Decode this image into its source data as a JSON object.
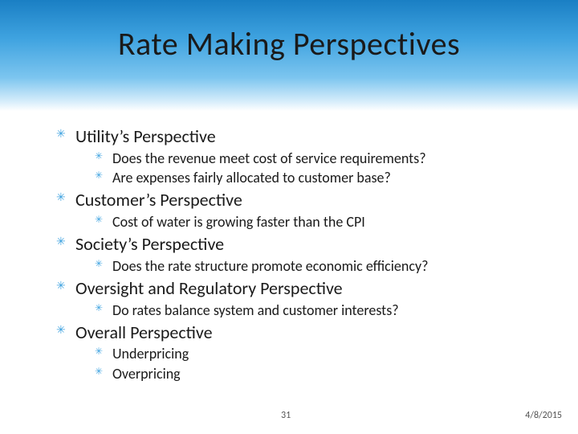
{
  "colors": {
    "gradient_top": "#1a7fc4",
    "gradient_mid": "#7cc5ef",
    "gradient_bottom": "#ffffff",
    "bullet": "#3fa3e0",
    "text": "#1a1a1a"
  },
  "typography": {
    "title_fontsize": 40,
    "section_fontsize": 22,
    "sub_fontsize": 18,
    "footer_fontsize": 12,
    "font_family": "Segoe UI / Candara"
  },
  "title": "Rate Making Perspectives",
  "sections": [
    {
      "heading": "Utility’s Perspective",
      "items": [
        "Does the revenue meet cost of service requirements?",
        "Are expenses fairly allocated to customer base?"
      ]
    },
    {
      "heading": "Customer’s Perspective",
      "items": [
        "Cost of water is growing faster than the CPI"
      ]
    },
    {
      "heading": "Society’s Perspective",
      "items": [
        "Does the rate structure promote economic efficiency?"
      ]
    },
    {
      "heading": "Oversight and Regulatory Perspective",
      "items": [
        "Do rates balance system and customer interests?"
      ]
    },
    {
      "heading": "Overall Perspective",
      "items": [
        "Underpricing",
        "Overpricing"
      ]
    }
  ],
  "footer": {
    "page": "31",
    "date": "4/8/2015"
  }
}
